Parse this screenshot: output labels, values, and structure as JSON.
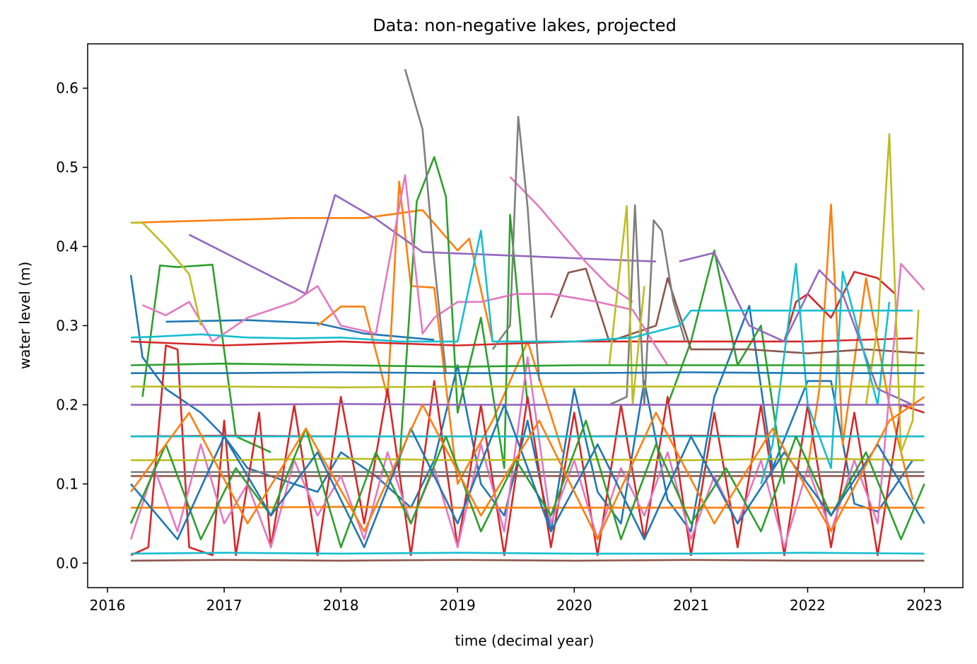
{
  "chart_data": {
    "type": "line",
    "title": "Data: non-negative lakes, projected",
    "xlabel": "time (decimal year)",
    "ylabel": "water level (m)",
    "xlim": [
      2015.83,
      2023.33
    ],
    "ylim": [
      -0.031,
      0.656
    ],
    "xticks": [
      "2016",
      "2017",
      "2018",
      "2019",
      "2020",
      "2021",
      "2022",
      "2023"
    ],
    "xtick_values": [
      2016,
      2017,
      2018,
      2019,
      2020,
      2021,
      2022,
      2023
    ],
    "yticks": [
      "0.0",
      "0.1",
      "0.2",
      "0.3",
      "0.4",
      "0.5",
      "0.6"
    ],
    "ytick_values": [
      0.0,
      0.1,
      0.2,
      0.3,
      0.4,
      0.5,
      0.6
    ],
    "grid": false,
    "legend": "none",
    "color_cycle": [
      "#1f77b4",
      "#ff7f0e",
      "#2ca02c",
      "#d62728",
      "#9467bd",
      "#8c564b",
      "#e377c2",
      "#7f7f7f",
      "#bcbd22",
      "#17becf"
    ],
    "series_note_count": "hundreds of overlapping lake series; representative subset reproduced",
    "series": [
      {
        "color": "#1f77b4",
        "x": [
          2016.2,
          2016.3,
          2016.5,
          2016.8,
          2017.0,
          2017.2,
          2017.8,
          2018.0,
          2018.3,
          2018.6,
          2018.8,
          2019.0,
          2019.2,
          2019.4,
          2019.6,
          2019.8,
          2020.0,
          2020.2,
          2020.4,
          2020.6,
          2020.8,
          2021.0,
          2021.2,
          2021.5,
          2021.7,
          2022.0,
          2022.2,
          2022.4,
          2022.6,
          2022.9,
          2023.0
        ],
        "y": [
          0.364,
          0.26,
          0.22,
          0.19,
          0.16,
          0.12,
          0.09,
          0.14,
          0.11,
          0.07,
          0.13,
          0.25,
          0.1,
          0.06,
          0.18,
          0.04,
          0.22,
          0.09,
          0.05,
          0.23,
          0.08,
          0.04,
          0.21,
          0.325,
          0.12,
          0.23,
          0.23,
          0.075,
          0.065,
          0.13,
          0.13
        ]
      },
      {
        "color": "#1f77b4",
        "x": [
          2016.5,
          2017.2,
          2017.8,
          2018.2,
          2018.8
        ],
        "y": [
          0.305,
          0.307,
          0.303,
          0.29,
          0.282
        ]
      },
      {
        "color": "#ff7f0e",
        "x": [
          2016.2,
          2017.6,
          2018.2,
          2018.7,
          2019.0,
          2019.1,
          2019.3
        ],
        "y": [
          0.43,
          0.436,
          0.436,
          0.446,
          0.395,
          0.41,
          0.28
        ]
      },
      {
        "color": "#ff7f0e",
        "x": [
          2017.8,
          2018.0,
          2018.2,
          2018.4,
          2018.5,
          2018.6,
          2018.8,
          2019.0,
          2019.3,
          2019.6,
          2019.9
        ],
        "y": [
          0.3,
          0.324,
          0.324,
          0.21,
          0.482,
          0.35,
          0.348,
          0.1,
          0.18,
          0.28,
          0.14
        ]
      },
      {
        "color": "#ff7f0e",
        "x": [
          2022.0,
          2022.1,
          2022.2,
          2022.3,
          2022.5,
          2022.7,
          2022.9
        ],
        "y": [
          0.12,
          0.22,
          0.453,
          0.15,
          0.36,
          0.2,
          0.08
        ]
      },
      {
        "color": "#2ca02c",
        "x": [
          2016.3,
          2016.45,
          2016.6,
          2016.9,
          2017.1,
          2017.4
        ],
        "y": [
          0.21,
          0.376,
          0.374,
          0.377,
          0.16,
          0.14
        ]
      },
      {
        "color": "#2ca02c",
        "x": [
          2018.5,
          2018.65,
          2018.8,
          2018.9,
          2019.0,
          2019.2,
          2019.4,
          2019.45,
          2019.6
        ],
        "y": [
          0.12,
          0.457,
          0.513,
          0.463,
          0.19,
          0.31,
          0.12,
          0.44,
          0.2
        ]
      },
      {
        "color": "#2ca02c",
        "x": [
          2020.8,
          2021.0,
          2021.2,
          2021.4,
          2021.6,
          2021.8
        ],
        "y": [
          0.2,
          0.28,
          0.395,
          0.25,
          0.3,
          0.1
        ]
      },
      {
        "color": "#d62728",
        "x": [
          2016.2,
          2016.35,
          2016.5,
          2016.6,
          2016.7,
          2016.9,
          2017.0,
          2017.1,
          2017.3,
          2017.4,
          2017.6,
          2017.8,
          2018.0,
          2018.2,
          2018.4,
          2018.6,
          2018.8,
          2019.0,
          2019.2,
          2019.4,
          2019.6,
          2019.8,
          2020.0,
          2020.2,
          2020.4,
          2020.6,
          2020.8,
          2021.0,
          2021.2,
          2021.4,
          2021.6,
          2021.8,
          2022.0,
          2022.2,
          2022.4,
          2022.6,
          2022.8,
          2023.0
        ],
        "y": [
          0.01,
          0.02,
          0.275,
          0.27,
          0.02,
          0.01,
          0.18,
          0.01,
          0.19,
          0.02,
          0.2,
          0.01,
          0.21,
          0.05,
          0.22,
          0.01,
          0.23,
          0.02,
          0.2,
          0.01,
          0.21,
          0.02,
          0.19,
          0.01,
          0.2,
          0.03,
          0.21,
          0.01,
          0.19,
          0.02,
          0.2,
          0.01,
          0.2,
          0.02,
          0.19,
          0.01,
          0.2,
          0.19
        ]
      },
      {
        "color": "#d62728",
        "x": [
          2016.2,
          2017.0,
          2018.0,
          2019.0,
          2020.0,
          2021.0,
          2022.0,
          2022.9
        ],
        "y": [
          0.28,
          0.275,
          0.28,
          0.275,
          0.28,
          0.28,
          0.28,
          0.284
        ]
      },
      {
        "color": "#d62728",
        "x": [
          2021.8,
          2021.9,
          2022.0,
          2022.2,
          2022.4,
          2022.6,
          2022.75
        ],
        "y": [
          0.28,
          0.33,
          0.34,
          0.31,
          0.368,
          0.36,
          0.34
        ]
      },
      {
        "color": "#9467bd",
        "x": [
          2016.7,
          2017.3,
          2017.7,
          2017.95,
          2018.3,
          2018.7,
          2019.2,
          2020.2,
          2020.7
        ],
        "y": [
          0.415,
          0.37,
          0.34,
          0.465,
          0.435,
          0.393,
          0.39,
          0.384,
          0.381
        ]
      },
      {
        "color": "#9467bd",
        "x": [
          2020.9,
          2021.2,
          2021.5,
          2021.8,
          2022.1,
          2022.3,
          2022.6,
          2022.9
        ],
        "y": [
          0.381,
          0.392,
          0.3,
          0.28,
          0.37,
          0.34,
          0.22,
          0.2
        ]
      },
      {
        "color": "#8c564b",
        "x": [
          2019.8,
          2019.95,
          2020.1,
          2020.3,
          2020.5,
          2020.7,
          2020.8,
          2021.0,
          2021.5,
          2022.0,
          2022.5,
          2023.0
        ],
        "y": [
          0.31,
          0.367,
          0.372,
          0.28,
          0.29,
          0.3,
          0.36,
          0.27,
          0.27,
          0.265,
          0.27,
          0.265
        ]
      },
      {
        "color": "#8c564b",
        "x": [
          2016.2,
          2017.0,
          2018.0,
          2019.0,
          2020.0,
          2021.0,
          2022.0,
          2023.0
        ],
        "y": [
          0.11,
          0.11,
          0.11,
          0.11,
          0.11,
          0.11,
          0.11,
          0.11
        ]
      },
      {
        "color": "#e377c2",
        "x": [
          2016.3,
          2016.5,
          2016.7,
          2016.9,
          2017.2,
          2017.6,
          2017.8,
          2018.0,
          2018.3,
          2018.55,
          2018.7,
          2018.8,
          2019.0,
          2019.2,
          2019.5,
          2019.8,
          2020.2,
          2020.5,
          2020.8
        ],
        "y": [
          0.326,
          0.313,
          0.33,
          0.28,
          0.31,
          0.33,
          0.35,
          0.3,
          0.29,
          0.49,
          0.29,
          0.31,
          0.33,
          0.33,
          0.34,
          0.34,
          0.33,
          0.32,
          0.25
        ]
      },
      {
        "color": "#e377c2",
        "x": [
          2019.45,
          2019.7,
          2019.9,
          2020.1,
          2020.3,
          2020.5
        ],
        "y": [
          0.488,
          0.45,
          0.415,
          0.38,
          0.35,
          0.33
        ]
      },
      {
        "color": "#e377c2",
        "x": [
          2016.2,
          2016.4,
          2016.6,
          2016.8,
          2017.0,
          2017.2,
          2017.4,
          2017.6,
          2017.8,
          2018.0,
          2018.2,
          2018.4,
          2018.6,
          2018.8,
          2019.0,
          2019.2,
          2019.4,
          2019.6,
          2019.8,
          2020.0,
          2020.2,
          2020.4,
          2020.6,
          2020.8,
          2021.0,
          2021.2,
          2021.4,
          2021.6,
          2021.8,
          2022.0,
          2022.2,
          2022.4,
          2022.6,
          2022.8,
          2023.0
        ],
        "y": [
          0.03,
          0.12,
          0.04,
          0.15,
          0.05,
          0.1,
          0.02,
          0.13,
          0.06,
          0.11,
          0.03,
          0.14,
          0.05,
          0.12,
          0.02,
          0.15,
          0.04,
          0.26,
          0.05,
          0.13,
          0.03,
          0.12,
          0.06,
          0.14,
          0.03,
          0.11,
          0.05,
          0.13,
          0.02,
          0.12,
          0.04,
          0.13,
          0.05,
          0.378,
          0.345
        ]
      },
      {
        "color": "#7f7f7f",
        "x": [
          2018.55,
          2018.7,
          2018.8,
          2018.9
        ],
        "y": [
          0.624,
          0.548,
          0.38,
          0.24
        ]
      },
      {
        "color": "#7f7f7f",
        "x": [
          2019.3,
          2019.45,
          2019.52,
          2019.6,
          2019.7
        ],
        "y": [
          0.27,
          0.3,
          0.564,
          0.45,
          0.23
        ]
      },
      {
        "color": "#7f7f7f",
        "x": [
          2020.3,
          2020.45,
          2020.52,
          2020.6,
          2020.68,
          2020.75,
          2020.85,
          2020.95
        ],
        "y": [
          0.2,
          0.21,
          0.452,
          0.2,
          0.433,
          0.42,
          0.33,
          0.28
        ]
      },
      {
        "color": "#7f7f7f",
        "x": [
          2016.2,
          2017.0,
          2018.0,
          2019.0,
          2020.0,
          2021.0,
          2022.0,
          2023.0
        ],
        "y": [
          0.115,
          0.115,
          0.115,
          0.115,
          0.115,
          0.115,
          0.115,
          0.115
        ]
      },
      {
        "color": "#bcbd22",
        "x": [
          2016.2,
          2016.3,
          2016.5,
          2016.7,
          2016.8
        ],
        "y": [
          0.43,
          0.43,
          0.4,
          0.365,
          0.3
        ]
      },
      {
        "color": "#bcbd22",
        "x": [
          2020.3,
          2020.45,
          2020.5,
          2020.6
        ],
        "y": [
          0.25,
          0.451,
          0.2,
          0.35
        ]
      },
      {
        "color": "#bcbd22",
        "x": [
          2022.5,
          2022.6,
          2022.7,
          2022.8,
          2022.9,
          2022.95
        ],
        "y": [
          0.2,
          0.3,
          0.542,
          0.14,
          0.18,
          0.32
        ]
      },
      {
        "color": "#bcbd22",
        "x": [
          2016.2,
          2017.0,
          2018.0,
          2019.0,
          2020.0,
          2021.0,
          2022.0,
          2023.0
        ],
        "y": [
          0.13,
          0.13,
          0.132,
          0.13,
          0.131,
          0.13,
          0.132,
          0.13
        ]
      },
      {
        "color": "#17becf",
        "x": [
          2016.2,
          2016.4,
          2016.8,
          2017.2,
          2017.6,
          2018.0,
          2018.5,
          2019.0,
          2019.2,
          2019.3,
          2019.6,
          2020.0,
          2020.5,
          2020.9,
          2021.0,
          2021.5,
          2022.0,
          2022.5,
          2022.9
        ],
        "y": [
          0.285,
          0.286,
          0.289,
          0.285,
          0.284,
          0.285,
          0.28,
          0.28,
          0.42,
          0.28,
          0.28,
          0.28,
          0.285,
          0.3,
          0.319,
          0.319,
          0.319,
          0.319,
          0.319
        ]
      },
      {
        "color": "#17becf",
        "x": [
          2021.6,
          2021.7,
          2021.9,
          2022.0,
          2022.2,
          2022.3,
          2022.6,
          2022.7
        ],
        "y": [
          0.1,
          0.15,
          0.378,
          0.2,
          0.12,
          0.368,
          0.2,
          0.33
        ]
      },
      {
        "color": "#17becf",
        "x": [
          2016.2,
          2017.0,
          2018.0,
          2019.0,
          2020.0,
          2021.0,
          2022.0,
          2023.0
        ],
        "y": [
          0.012,
          0.013,
          0.012,
          0.013,
          0.012,
          0.012,
          0.013,
          0.012
        ]
      },
      {
        "color": "#2ca02c",
        "x": [
          2016.2,
          2017.0,
          2018.0,
          2019.0,
          2020.0,
          2021.0,
          2022.0,
          2023.0
        ],
        "y": [
          0.25,
          0.252,
          0.25,
          0.248,
          0.25,
          0.25,
          0.25,
          0.25
        ]
      },
      {
        "color": "#1f77b4",
        "x": [
          2016.2,
          2017.0,
          2018.0,
          2019.0,
          2020.0,
          2021.0,
          2022.0,
          2023.0
        ],
        "y": [
          0.24,
          0.24,
          0.241,
          0.24,
          0.24,
          0.241,
          0.24,
          0.24
        ]
      },
      {
        "color": "#ff7f0e",
        "x": [
          2016.2,
          2017.0,
          2018.0,
          2019.0,
          2020.0,
          2021.0,
          2022.0,
          2023.0
        ],
        "y": [
          0.07,
          0.07,
          0.071,
          0.07,
          0.07,
          0.07,
          0.07,
          0.07
        ]
      },
      {
        "color": "#9467bd",
        "x": [
          2016.2,
          2017.0,
          2018.0,
          2019.0,
          2020.0,
          2021.0,
          2022.0,
          2023.0
        ],
        "y": [
          0.2,
          0.2,
          0.201,
          0.2,
          0.2,
          0.2,
          0.2,
          0.2
        ]
      },
      {
        "color": "#8c564b",
        "x": [
          2016.2,
          2017.0,
          2018.0,
          2019.0,
          2020.0,
          2021.0,
          2022.0,
          2023.0
        ],
        "y": [
          0.003,
          0.004,
          0.003,
          0.004,
          0.003,
          0.004,
          0.003,
          0.003
        ]
      },
      {
        "color": "#d62728",
        "x": [
          2016.2,
          2017.0,
          2018.0,
          2019.0,
          2020.0,
          2021.0,
          2022.0,
          2023.0
        ],
        "y": [
          0.16,
          0.161,
          0.16,
          0.16,
          0.16,
          0.161,
          0.16,
          0.16
        ]
      },
      {
        "color": "#bcbd22",
        "x": [
          2016.2,
          2017.0,
          2018.0,
          2019.0,
          2020.0,
          2021.0,
          2022.0,
          2023.0
        ],
        "y": [
          0.223,
          0.223,
          0.222,
          0.223,
          0.223,
          0.223,
          0.223,
          0.223
        ]
      },
      {
        "color": "#17becf",
        "x": [
          2016.2,
          2017.0,
          2018.0,
          2019.0,
          2020.0,
          2021.0,
          2022.0,
          2023.0
        ],
        "y": [
          0.16,
          0.16,
          0.16,
          0.16,
          0.16,
          0.16,
          0.16,
          0.16
        ]
      },
      {
        "color": "#2ca02c",
        "x": [
          2016.2,
          2016.5,
          2016.8,
          2017.1,
          2017.4,
          2017.7,
          2018.0,
          2018.3,
          2018.6,
          2018.9,
          2019.2,
          2019.5,
          2019.8,
          2020.1,
          2020.4,
          2020.7,
          2021.0,
          2021.3,
          2021.6,
          2021.9,
          2022.2,
          2022.5,
          2022.8,
          2023.0
        ],
        "y": [
          0.05,
          0.15,
          0.03,
          0.12,
          0.06,
          0.17,
          0.02,
          0.14,
          0.05,
          0.16,
          0.04,
          0.13,
          0.06,
          0.18,
          0.03,
          0.15,
          0.05,
          0.12,
          0.04,
          0.16,
          0.06,
          0.14,
          0.03,
          0.1
        ]
      },
      {
        "color": "#1f77b4",
        "x": [
          2016.2,
          2016.6,
          2017.0,
          2017.4,
          2017.8,
          2018.2,
          2018.6,
          2019.0,
          2019.4,
          2019.8,
          2020.2,
          2020.6,
          2021.0,
          2021.4,
          2021.8,
          2022.2,
          2022.6,
          2023.0
        ],
        "y": [
          0.1,
          0.03,
          0.16,
          0.06,
          0.14,
          0.02,
          0.17,
          0.05,
          0.2,
          0.04,
          0.15,
          0.03,
          0.16,
          0.05,
          0.14,
          0.06,
          0.15,
          0.05
        ]
      },
      {
        "color": "#ff7f0e",
        "x": [
          2016.2,
          2016.7,
          2017.2,
          2017.7,
          2018.2,
          2018.7,
          2019.2,
          2019.7,
          2020.2,
          2020.7,
          2021.2,
          2021.7,
          2022.2,
          2022.7,
          2023.0
        ],
        "y": [
          0.09,
          0.19,
          0.05,
          0.17,
          0.04,
          0.2,
          0.06,
          0.18,
          0.03,
          0.19,
          0.05,
          0.17,
          0.04,
          0.18,
          0.21
        ]
      }
    ]
  }
}
